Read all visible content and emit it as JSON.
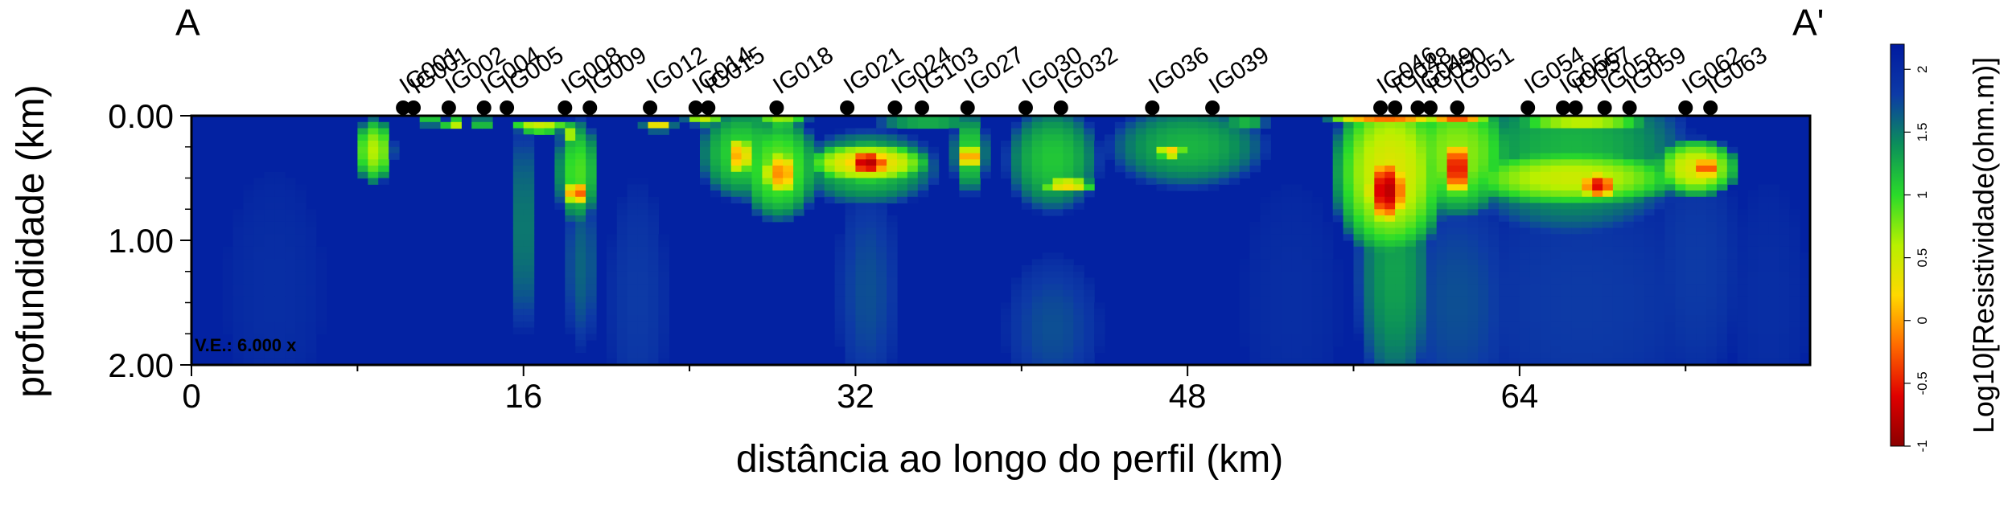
{
  "section": {
    "start_label": "A",
    "end_label": "A'"
  },
  "chart_data": {
    "type": "heatmap",
    "title": "",
    "xlabel": "distância ao longo do perfil (km)",
    "ylabel": "profundidade (km)",
    "xlim": [
      0,
      78
    ],
    "ylim": [
      2.0,
      0.0
    ],
    "x_ticks": [
      "0",
      "16",
      "32",
      "48",
      "64"
    ],
    "x_tick_values": [
      0,
      16,
      32,
      48,
      64
    ],
    "y_ticks": [
      "0.00",
      "1.00",
      "2.00"
    ],
    "y_tick_values": [
      0,
      1,
      2
    ],
    "vertical_exaggeration": "V.E.: 6.000 x",
    "colorbar": {
      "label": "Log10[Resistividade(ohm.m)]",
      "range": [
        -1,
        2.2
      ],
      "ticks": [
        "-1",
        "-0.5",
        "0",
        "0.5",
        "1",
        "1.5",
        "2"
      ],
      "tick_values": [
        -1,
        -0.5,
        0,
        0.5,
        1,
        1.5,
        2
      ],
      "colors": [
        "#8b0000",
        "#e00000",
        "#ff6a00",
        "#ffd800",
        "#b8f000",
        "#2adb2a",
        "#0b8f5a",
        "#0d3aa6",
        "#001aa0"
      ]
    },
    "background_value": 2.1,
    "stations": [
      {
        "name": "IG001",
        "x": 10.2
      },
      {
        "name": "IG001",
        "x": 10.7
      },
      {
        "name": "IG002",
        "x": 12.4
      },
      {
        "name": "IG004",
        "x": 14.1
      },
      {
        "name": "IG005",
        "x": 15.2
      },
      {
        "name": "IG008",
        "x": 18.0
      },
      {
        "name": "IG009",
        "x": 19.2
      },
      {
        "name": "IG012",
        "x": 22.1
      },
      {
        "name": "IG014",
        "x": 24.3
      },
      {
        "name": "IG015",
        "x": 24.9
      },
      {
        "name": "IG018",
        "x": 28.2
      },
      {
        "name": "IG021",
        "x": 31.6
      },
      {
        "name": "IG024",
        "x": 33.9
      },
      {
        "name": "IG103",
        "x": 35.2
      },
      {
        "name": "IG027",
        "x": 37.4
      },
      {
        "name": "IG030",
        "x": 40.2
      },
      {
        "name": "IG032",
        "x": 41.9
      },
      {
        "name": "IG036",
        "x": 46.3
      },
      {
        "name": "IG039",
        "x": 49.2
      },
      {
        "name": "IG046",
        "x": 57.3
      },
      {
        "name": "IG048",
        "x": 58.0
      },
      {
        "name": "IG049",
        "x": 59.1
      },
      {
        "name": "IG050",
        "x": 59.7
      },
      {
        "name": "IG051",
        "x": 61.0
      },
      {
        "name": "IG054",
        "x": 64.4
      },
      {
        "name": "IG056",
        "x": 66.1
      },
      {
        "name": "IG057",
        "x": 66.7
      },
      {
        "name": "IG058",
        "x": 68.1
      },
      {
        "name": "IG059",
        "x": 69.3
      },
      {
        "name": "IG062",
        "x": 72.0
      },
      {
        "name": "IG063",
        "x": 73.2
      }
    ],
    "anomalies": [
      {
        "x": 8.8,
        "z": 0.28,
        "w": 1.0,
        "d": 0.28,
        "v": 0.6
      },
      {
        "x": 11.5,
        "z": 0.03,
        "w": 0.6,
        "d": 0.06,
        "v": 1.0
      },
      {
        "x": 12.6,
        "z": 0.06,
        "w": 0.5,
        "d": 0.05,
        "v": 0.4
      },
      {
        "x": 14.0,
        "z": 0.06,
        "w": 0.6,
        "d": 0.05,
        "v": 1.0
      },
      {
        "x": 16.8,
        "z": 0.09,
        "w": 1.6,
        "d": 0.05,
        "v": 0.4
      },
      {
        "x": 16.0,
        "z": 0.9,
        "w": 0.35,
        "d": 1.2,
        "v": 1.2
      },
      {
        "x": 18.2,
        "z": 0.15,
        "w": 0.5,
        "d": 0.1,
        "v": 0.6
      },
      {
        "x": 18.6,
        "z": 0.62,
        "w": 0.7,
        "d": 0.1,
        "v": -0.3
      },
      {
        "x": 18.6,
        "z": 0.45,
        "w": 1.1,
        "d": 0.45,
        "v": 0.9
      },
      {
        "x": 18.8,
        "z": 1.2,
        "w": 0.9,
        "d": 0.7,
        "v": 1.6
      },
      {
        "x": 22.5,
        "z": 0.08,
        "w": 0.8,
        "d": 0.05,
        "v": 0.2
      },
      {
        "x": 24.7,
        "z": 0.04,
        "w": 1.1,
        "d": 0.04,
        "v": 0.4
      },
      {
        "x": 26.4,
        "z": 0.32,
        "w": 0.7,
        "d": 0.18,
        "v": 0.0
      },
      {
        "x": 26.5,
        "z": 0.3,
        "w": 2.2,
        "d": 0.4,
        "v": 1.0
      },
      {
        "x": 28.4,
        "z": 0.46,
        "w": 1.0,
        "d": 0.2,
        "v": -0.1
      },
      {
        "x": 28.3,
        "z": 0.42,
        "w": 2.1,
        "d": 0.45,
        "v": 0.8
      },
      {
        "x": 28.4,
        "z": 0.04,
        "w": 1.5,
        "d": 0.05,
        "v": 0.6
      },
      {
        "x": 32.6,
        "z": 0.38,
        "w": 1.2,
        "d": 0.12,
        "v": -0.8
      },
      {
        "x": 32.6,
        "z": 0.38,
        "w": 3.2,
        "d": 0.18,
        "v": 0.2
      },
      {
        "x": 32.6,
        "z": 0.42,
        "w": 3.6,
        "d": 0.32,
        "v": 1.1
      },
      {
        "x": 32.6,
        "z": 1.4,
        "w": 1.6,
        "d": 0.9,
        "v": 1.7
      },
      {
        "x": 37.5,
        "z": 0.33,
        "w": 0.6,
        "d": 0.1,
        "v": -0.2
      },
      {
        "x": 37.5,
        "z": 0.3,
        "w": 0.9,
        "d": 0.35,
        "v": 1.0
      },
      {
        "x": 35.5,
        "z": 0.05,
        "w": 3.0,
        "d": 0.05,
        "v": 1.1
      },
      {
        "x": 41.5,
        "z": 0.35,
        "w": 2.4,
        "d": 0.45,
        "v": 1.1
      },
      {
        "x": 42.2,
        "z": 0.56,
        "w": 1.4,
        "d": 0.07,
        "v": 0.2
      },
      {
        "x": 41.5,
        "z": 1.7,
        "w": 2.4,
        "d": 0.6,
        "v": 1.7
      },
      {
        "x": 47.2,
        "z": 0.29,
        "w": 0.8,
        "d": 0.06,
        "v": 0.1
      },
      {
        "x": 48.0,
        "z": 0.25,
        "w": 4.0,
        "d": 0.35,
        "v": 1.2
      },
      {
        "x": 50.8,
        "z": 0.05,
        "w": 1.2,
        "d": 0.06,
        "v": 1.1
      },
      {
        "x": 57.6,
        "z": 0.6,
        "w": 1.1,
        "d": 0.3,
        "v": -0.8
      },
      {
        "x": 57.8,
        "z": 0.45,
        "w": 3.0,
        "d": 0.75,
        "v": 0.4
      },
      {
        "x": 57.6,
        "z": 0.03,
        "w": 3.0,
        "d": 0.05,
        "v": -0.2
      },
      {
        "x": 58.0,
        "z": 1.25,
        "w": 2.0,
        "d": 1.1,
        "v": 1.3
      },
      {
        "x": 61.0,
        "z": 0.42,
        "w": 0.9,
        "d": 0.25,
        "v": -0.6
      },
      {
        "x": 61.0,
        "z": 0.3,
        "w": 3.0,
        "d": 0.55,
        "v": 0.7
      },
      {
        "x": 61.0,
        "z": 0.03,
        "w": 1.6,
        "d": 0.05,
        "v": -0.3
      },
      {
        "x": 61.0,
        "z": 1.5,
        "w": 3.0,
        "d": 1.0,
        "v": 1.7
      },
      {
        "x": 67.8,
        "z": 0.56,
        "w": 1.0,
        "d": 0.12,
        "v": -0.6
      },
      {
        "x": 66.5,
        "z": 0.5,
        "w": 6.0,
        "d": 0.25,
        "v": 0.5
      },
      {
        "x": 66.5,
        "z": 0.3,
        "w": 6.0,
        "d": 0.7,
        "v": 1.2
      },
      {
        "x": 67.0,
        "z": 0.05,
        "w": 4.0,
        "d": 0.05,
        "v": 0.3
      },
      {
        "x": 67.0,
        "z": 1.5,
        "w": 6.0,
        "d": 1.0,
        "v": 1.8
      },
      {
        "x": 73.0,
        "z": 0.42,
        "w": 0.8,
        "d": 0.1,
        "v": -0.4
      },
      {
        "x": 72.5,
        "z": 0.42,
        "w": 2.2,
        "d": 0.25,
        "v": 0.4
      },
      {
        "x": 72.5,
        "z": 1.2,
        "w": 2.2,
        "d": 1.0,
        "v": 1.8
      },
      {
        "x": 4.0,
        "z": 1.4,
        "w": 2.5,
        "d": 1.0,
        "v": 1.95
      },
      {
        "x": 21.5,
        "z": 1.5,
        "w": 1.5,
        "d": 1.0,
        "v": 1.8
      },
      {
        "x": 53.0,
        "z": 1.5,
        "w": 2.5,
        "d": 1.0,
        "v": 1.95
      },
      {
        "x": 76.0,
        "z": 1.5,
        "w": 2.0,
        "d": 1.0,
        "v": 1.95
      }
    ]
  }
}
